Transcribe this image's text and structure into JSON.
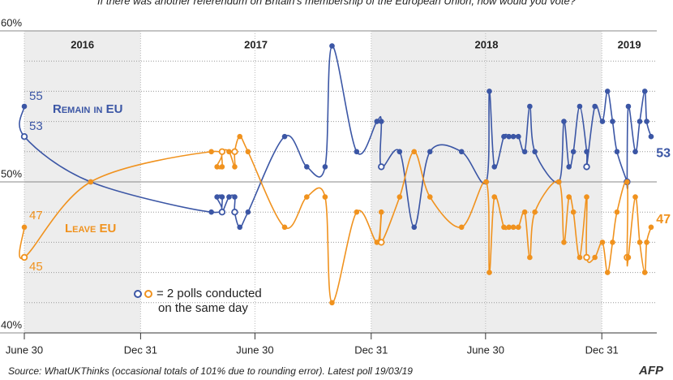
{
  "chart_data": {
    "type": "line",
    "subtitle": "If there was another referendum on Britain's membership of the European Union, how would you vote?",
    "x": [
      "2016-06-30",
      "2016-06-30",
      "2016-10-13",
      "2017-04-22",
      "2017-05-01",
      "2017-05-09",
      "2017-05-09",
      "2017-05-20",
      "2017-05-29",
      "2017-05-29",
      "2017-06-06",
      "2017-06-19",
      "2017-08-16",
      "2017-09-20",
      "2017-10-19",
      "2017-10-30",
      "2017-12-08",
      "2018-01-09",
      "2018-01-16",
      "2018-01-16",
      "2018-02-14",
      "2018-03-09",
      "2018-04-03",
      "2018-05-23",
      "2018-07-01",
      "2018-07-06",
      "2018-07-14",
      "2018-07-29",
      "2018-08-06",
      "2018-08-13",
      "2018-08-21",
      "2018-08-31",
      "2018-09-08",
      "2018-09-16",
      "2018-10-24",
      "2018-11-01",
      "2018-11-09",
      "2018-11-16",
      "2018-11-26",
      "2018-12-07",
      "2018-12-07",
      "2018-12-20",
      "2019-01-01",
      "2019-01-09",
      "2019-01-17",
      "2019-01-24",
      "2019-02-09",
      "2019-02-09",
      "2019-02-11",
      "2019-02-22",
      "2019-03-01",
      "2019-03-09",
      "2019-03-12",
      "2019-03-19"
    ],
    "series": [
      {
        "name": "Remain in EU",
        "color": "#3b56a5",
        "values": [
          55,
          53,
          50,
          48,
          49,
          49,
          48,
          49,
          49,
          48,
          47,
          48,
          53,
          51,
          51,
          59,
          52,
          54,
          54,
          51,
          52,
          47,
          52,
          52,
          50,
          56,
          51,
          53,
          53,
          53,
          53,
          52,
          55,
          52,
          50,
          54,
          51,
          52,
          55,
          52,
          51,
          55,
          54,
          56,
          54,
          52,
          50,
          50,
          55,
          52,
          54,
          56,
          54,
          53
        ]
      },
      {
        "name": "Leave EU",
        "color": "#f0921e",
        "values": [
          47,
          45,
          50,
          52,
          51,
          51,
          52,
          52,
          51,
          52,
          53,
          52,
          47,
          49,
          49,
          42,
          48,
          46,
          48,
          46,
          49,
          52,
          49,
          47,
          50,
          44,
          49,
          47,
          47,
          47,
          47,
          48,
          45,
          48,
          50,
          46,
          49,
          48,
          45,
          49,
          45,
          45,
          46,
          44,
          46,
          48,
          50,
          45,
          45,
          49,
          46,
          44,
          46,
          47
        ]
      }
    ],
    "xlim": [
      "2016-06-30",
      "2019-03-28"
    ],
    "xticks": [
      {
        "value": "2016-06-30",
        "label": "June 30"
      },
      {
        "value": "2016-12-31",
        "label": "Dec 31"
      },
      {
        "value": "2017-06-30",
        "label": "June 30"
      },
      {
        "value": "2017-12-31",
        "label": "Dec 31"
      },
      {
        "value": "2018-06-30",
        "label": "June 30"
      },
      {
        "value": "2018-12-31",
        "label": "Dec 31"
      }
    ],
    "ylim": [
      40,
      60
    ],
    "yticks": [
      {
        "value": 40,
        "label": "40%"
      },
      {
        "value": 50,
        "label": "50%"
      },
      {
        "value": 60,
        "label": "60%"
      }
    ],
    "grid_minor": [
      42,
      44,
      46,
      48,
      52,
      54,
      56,
      58
    ],
    "years": [
      {
        "label": "2016",
        "start": "2016-06-30",
        "end": "2016-12-31",
        "shaded": true
      },
      {
        "label": "2017",
        "start": "2016-12-31",
        "end": "2017-12-31",
        "shaded": false
      },
      {
        "label": "2018",
        "start": "2017-12-31",
        "end": "2018-12-31",
        "shaded": true
      },
      {
        "label": "2019",
        "start": "2018-12-31",
        "end": "2019-03-28",
        "shaded": false
      }
    ],
    "note": [
      "= 2 polls conducted",
      "on the same day"
    ],
    "source": "Source: WhatUKThinks (occasional totals of 101% due to rounding error). Latest poll 19/03/19",
    "logo": "AFP"
  }
}
